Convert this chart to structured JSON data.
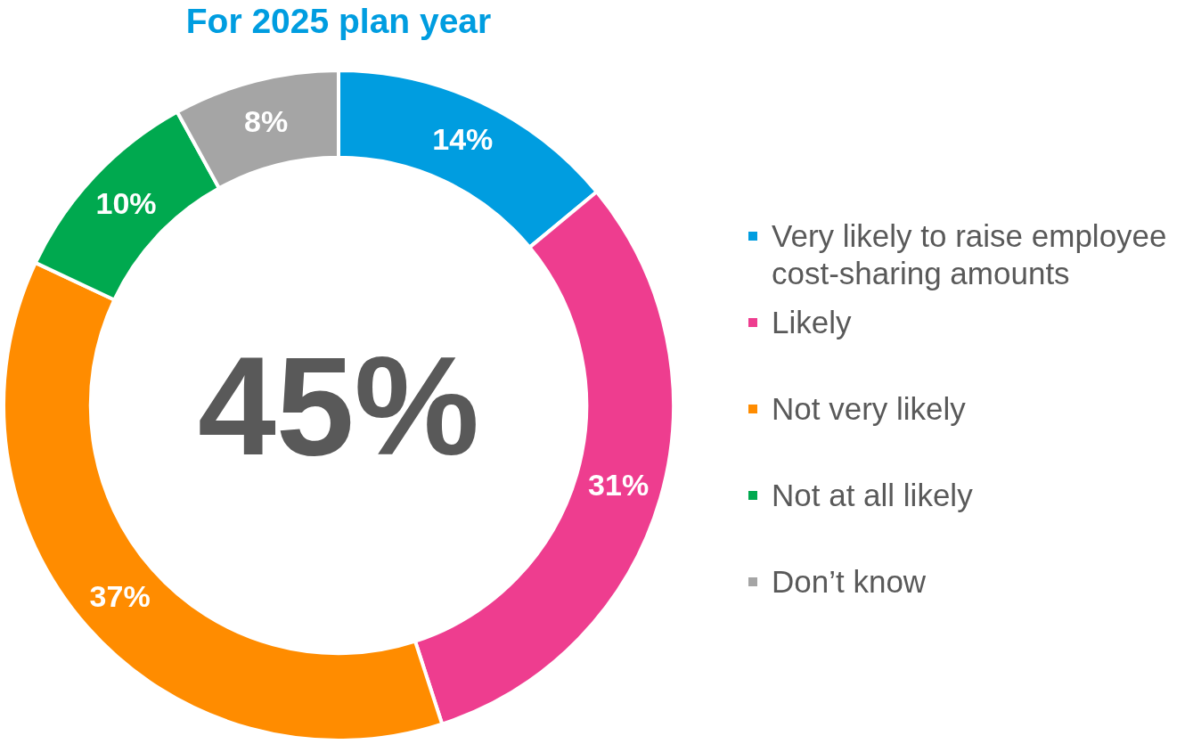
{
  "chart_data": {
    "type": "donut",
    "title": "For 2025 plan year",
    "categories": [
      "Very likely to raise employee cost-sharing amounts",
      "Likely",
      "Not very likely",
      "Not at all likely",
      "Don’t know"
    ],
    "values": [
      14,
      31,
      37,
      10,
      8
    ],
    "colors": [
      "#009de0",
      "#ee3d8f",
      "#ff8c00",
      "#00a94f",
      "#a5a5a5"
    ],
    "value_labels": [
      "14%",
      "31%",
      "37%",
      "10%",
      "8%"
    ],
    "legend": "right",
    "annotations": [
      "45%"
    ]
  }
}
